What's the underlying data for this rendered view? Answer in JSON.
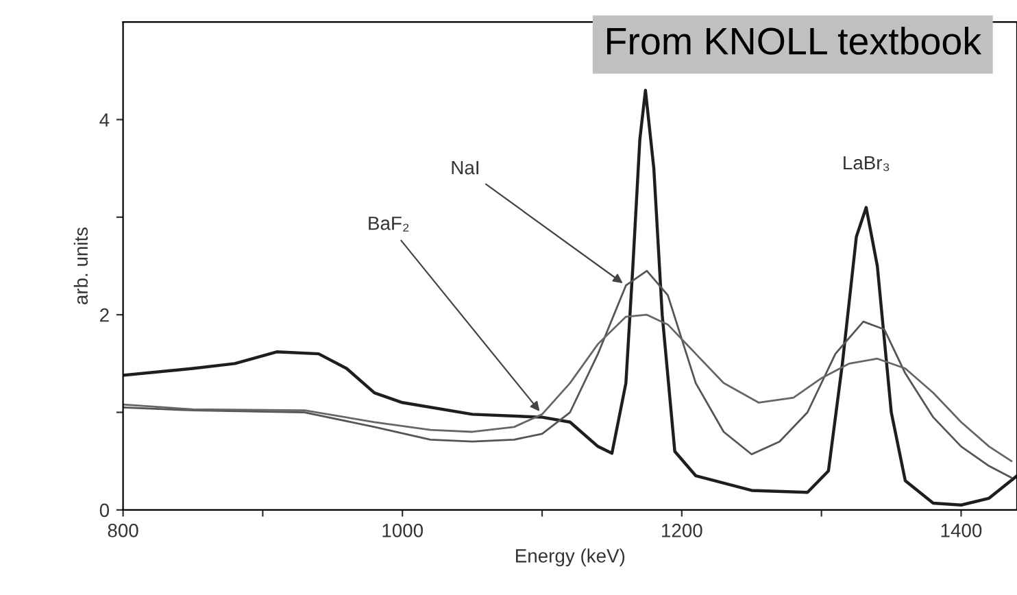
{
  "chart_data": {
    "type": "line",
    "xlabel": "Energy (keV)",
    "ylabel": "arb. units",
    "xlim": [
      800,
      1440
    ],
    "ylim": [
      0,
      5
    ],
    "xticks": [
      800,
      {
        "value": 900,
        "label": null
      },
      1000,
      {
        "value": 1100,
        "label": null
      },
      1200,
      {
        "value": 1300,
        "label": null
      },
      1400
    ],
    "yticks": [
      0,
      {
        "value": 1,
        "label": null
      },
      2,
      {
        "value": 3,
        "label": null
      },
      4
    ],
    "grid": false,
    "series": [
      {
        "color": "#1e1e1e",
        "x": [
          800,
          850,
          880,
          910,
          940,
          960,
          980,
          1000,
          1050,
          1100,
          1120,
          1140,
          1150,
          1160,
          1165,
          1170,
          1174,
          1180,
          1186,
          1195,
          1210,
          1250,
          1290,
          1305,
          1315,
          1325,
          1332,
          1340,
          1350,
          1360,
          1380,
          1400,
          1420,
          1440
        ],
        "values": [
          1.38,
          1.45,
          1.5,
          1.62,
          1.6,
          1.45,
          1.2,
          1.1,
          0.98,
          0.95,
          0.9,
          0.65,
          0.58,
          1.3,
          2.5,
          3.8,
          4.3,
          3.5,
          2.0,
          0.6,
          0.35,
          0.2,
          0.18,
          0.4,
          1.5,
          2.8,
          3.1,
          2.5,
          1.0,
          0.3,
          0.07,
          0.05,
          0.12,
          0.35
        ]
      },
      {
        "color": "#555555",
        "x": [
          800,
          850,
          930,
          980,
          1020,
          1050,
          1080,
          1100,
          1120,
          1140,
          1160,
          1175,
          1190,
          1210,
          1230,
          1250,
          1270,
          1290,
          1310,
          1330,
          1345,
          1360,
          1380,
          1400,
          1420,
          1436
        ],
        "values": [
          1.05,
          1.02,
          1.0,
          0.85,
          0.72,
          0.7,
          0.72,
          0.78,
          1.0,
          1.6,
          2.3,
          2.45,
          2.2,
          1.3,
          0.8,
          0.57,
          0.7,
          1.0,
          1.6,
          1.93,
          1.85,
          1.4,
          0.95,
          0.65,
          0.45,
          0.33
        ]
      },
      {
        "color": "#666666",
        "x": [
          800,
          850,
          930,
          980,
          1020,
          1050,
          1080,
          1100,
          1120,
          1140,
          1160,
          1175,
          1190,
          1210,
          1230,
          1255,
          1280,
          1300,
          1320,
          1340,
          1360,
          1380,
          1400,
          1420,
          1436
        ],
        "values": [
          1.08,
          1.03,
          1.02,
          0.9,
          0.82,
          0.8,
          0.85,
          0.98,
          1.3,
          1.7,
          1.98,
          2.0,
          1.9,
          1.6,
          1.3,
          1.1,
          1.15,
          1.35,
          1.5,
          1.55,
          1.45,
          1.2,
          0.9,
          0.65,
          0.5
        ]
      }
    ],
    "annotations": [
      {
        "text": "NaI",
        "x": 1160,
        "y": 2.3
      },
      {
        "text": "BaF₂",
        "x": 1100,
        "y": 0.98
      },
      {
        "text": "LaBr₃",
        "x": 1332,
        "y": 3.1
      },
      "From KNOLL textbook"
    ]
  }
}
